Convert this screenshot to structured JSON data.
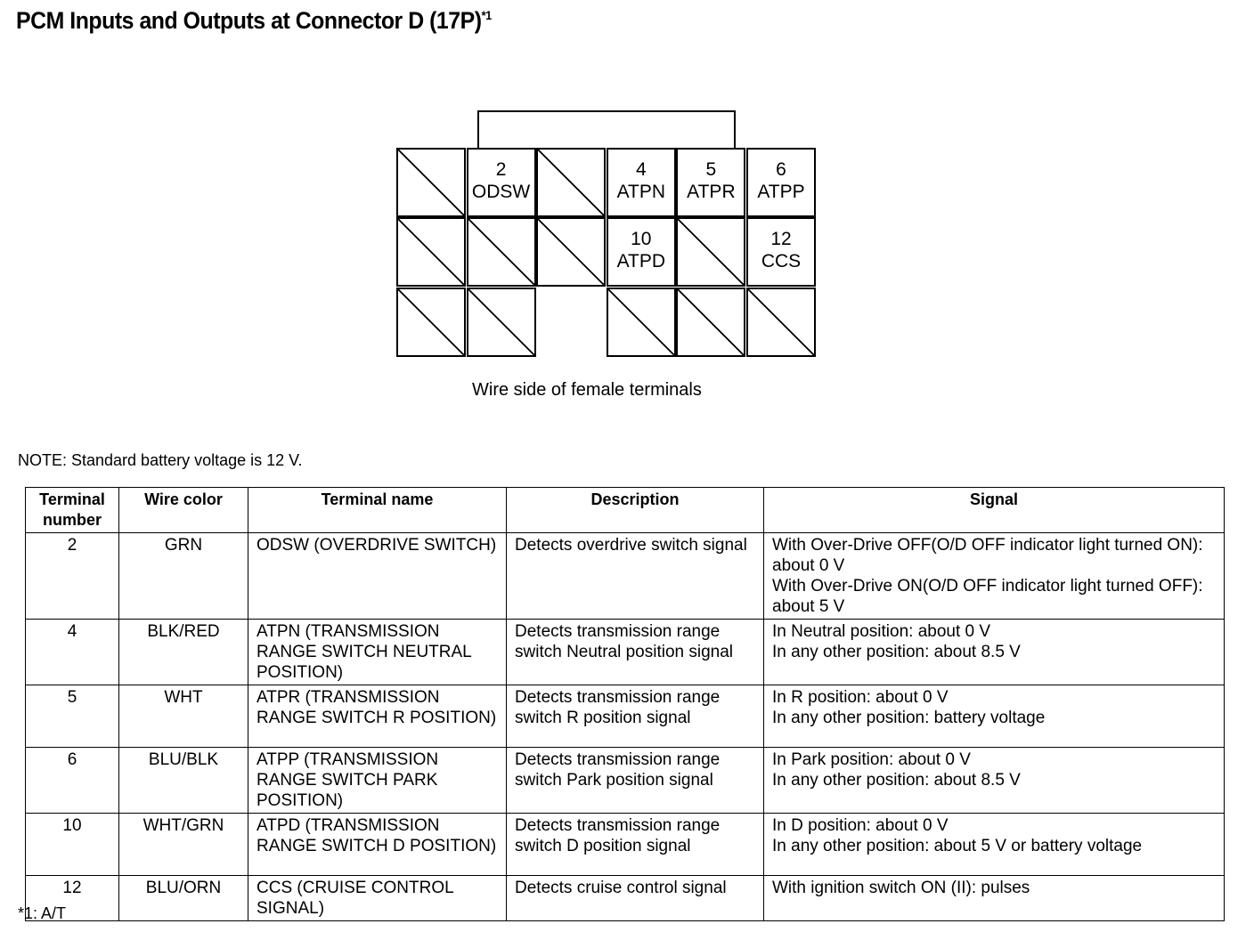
{
  "title": "PCM Inputs and Outputs at Connector D (17P)",
  "title_sup": "*1",
  "connector": {
    "caption": "Wire side of female terminals",
    "cells": [
      {
        "num": "2",
        "name": "ODSW"
      },
      {
        "num": "4",
        "name": "ATPN"
      },
      {
        "num": "5",
        "name": "ATPR"
      },
      {
        "num": "6",
        "name": "ATPP"
      },
      {
        "num": "10",
        "name": "ATPD"
      },
      {
        "num": "12",
        "name": "CCS"
      }
    ]
  },
  "note": "NOTE: Standard battery voltage is 12 V.",
  "table": {
    "headers": [
      "Terminal number",
      "Wire color",
      "Terminal name",
      "Description",
      "Signal"
    ],
    "rows": [
      [
        "2",
        "GRN",
        "ODSW (OVERDRIVE SWITCH)",
        "Detects overdrive switch signal",
        "With Over-Drive OFF(O/D OFF indicator light turned ON): about 0 V\nWith Over-Drive ON(O/D OFF indicator light turned OFF): about 5 V"
      ],
      [
        "4",
        "BLK/RED",
        "ATPN (TRANSMISSION RANGE SWITCH NEUTRAL POSITION)",
        "Detects transmission range switch Neutral position signal",
        "In Neutral position: about 0 V\nIn any other position: about 8.5 V"
      ],
      [
        "5",
        "WHT",
        "ATPR (TRANSMISSION RANGE SWITCH R POSITION)",
        "Detects transmission range switch R position signal",
        "In R position: about 0 V\nIn any other position: battery voltage"
      ],
      [
        "6",
        "BLU/BLK",
        "ATPP (TRANSMISSION RANGE SWITCH PARK POSITION)",
        "Detects transmission range switch Park position signal",
        "In Park position: about 0 V\nIn any other position: about 8.5 V"
      ],
      [
        "10",
        "WHT/GRN",
        "ATPD (TRANSMISSION RANGE SWITCH D POSITION)",
        "Detects transmission range switch D position signal",
        "In D position: about 0 V\nIn any other position: about 5 V or battery voltage"
      ],
      [
        "12",
        "BLU/ORN",
        "CCS (CRUISE CONTROL SIGNAL)",
        "Detects cruise control signal",
        "With ignition switch ON (II): pulses"
      ]
    ]
  },
  "footnote": "*1: A/T"
}
